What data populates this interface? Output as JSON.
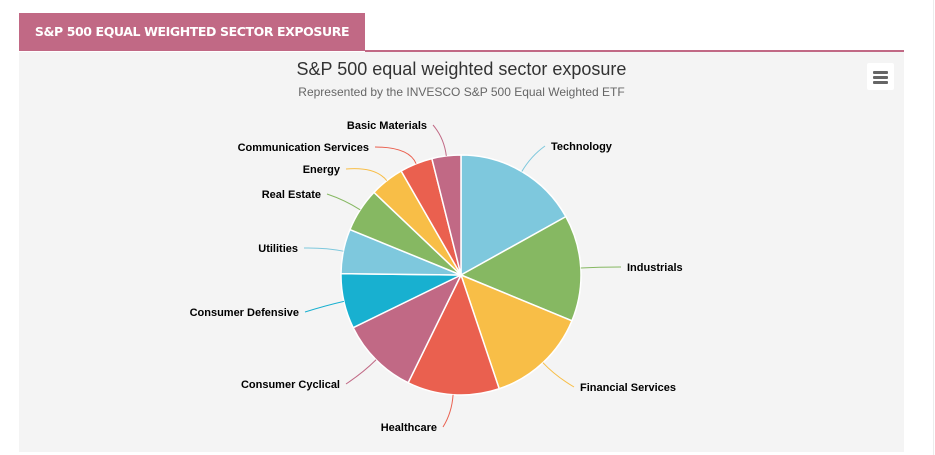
{
  "tab": {
    "label": "S&P 500 EQUAL WEIGHTED SECTOR EXPOSURE"
  },
  "menu": {
    "icon": "hamburger-menu-icon"
  },
  "colors": {
    "accent": "#c16985",
    "panel_bg": "#f4f4f4"
  },
  "chart_data": {
    "type": "pie",
    "title": "S&P 500 equal weighted  sector exposure",
    "subtitle": "Represented by the INVESCO S&P 500  Equal Weighted ETF",
    "unit": "percent (estimated from slice angles)",
    "slices": [
      {
        "name": "Technology",
        "value": 16.9,
        "color": "#7ec8dd"
      },
      {
        "name": "Industrials",
        "value": 14.3,
        "color": "#86b862"
      },
      {
        "name": "Financial Services",
        "value": 13.6,
        "color": "#f8be47"
      },
      {
        "name": "Healthcare",
        "value": 12.4,
        "color": "#ea604f"
      },
      {
        "name": "Consumer Cyclical",
        "value": 10.5,
        "color": "#c16985"
      },
      {
        "name": "Consumer Defensive",
        "value": 7.4,
        "color": "#18b0d0"
      },
      {
        "name": "Utilities",
        "value": 6.0,
        "color": "#7ec8dd"
      },
      {
        "name": "Real Estate",
        "value": 5.9,
        "color": "#86b862"
      },
      {
        "name": "Energy",
        "value": 4.6,
        "color": "#f8be47"
      },
      {
        "name": "Communication Services",
        "value": 4.4,
        "color": "#ea604f"
      },
      {
        "name": "Basic Materials",
        "value": 3.9,
        "color": "#c16985"
      }
    ],
    "legend": "none (data labels with connectors)"
  }
}
